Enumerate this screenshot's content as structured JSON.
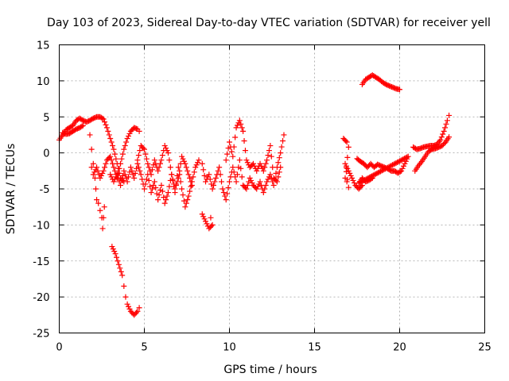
{
  "chart_data": {
    "type": "scatter",
    "title": "Day 103 of 2023, Sidereal Day-to-day VTEC variation (SDTVAR) for receiver yell",
    "xlabel": "GPS time / hours",
    "ylabel": "SDTVAR / TECUs",
    "xlim": [
      0,
      25
    ],
    "ylim": [
      -25,
      15
    ],
    "xticks": [
      "0",
      "5",
      "10",
      "15",
      "20",
      "25"
    ],
    "yticks": [
      "-25",
      "-20",
      "-15",
      "-10",
      "-5",
      "0",
      "5",
      "10",
      "15"
    ],
    "grid": true,
    "marker": "+",
    "color": "#ff0000",
    "series": [
      {
        "name": "s1",
        "points": [
          [
            0.0,
            1.8
          ],
          [
            0.2,
            2.5
          ],
          [
            0.4,
            3.2
          ],
          [
            0.6,
            3.5
          ],
          [
            0.8,
            3.8
          ],
          [
            1.0,
            4.5
          ],
          [
            1.2,
            4.8
          ],
          [
            1.4,
            4.5
          ],
          [
            1.6,
            4.3
          ],
          [
            1.8,
            4.5
          ],
          [
            2.0,
            4.8
          ],
          [
            2.2,
            5.0
          ],
          [
            2.4,
            5.0
          ],
          [
            2.6,
            4.7
          ],
          [
            2.8,
            3.5
          ],
          [
            3.0,
            2.0
          ],
          [
            3.2,
            0.5
          ],
          [
            3.4,
            -1.5
          ],
          [
            3.6,
            -3.5
          ],
          [
            3.8,
            -4.0
          ]
        ]
      },
      {
        "name": "s2",
        "points": [
          [
            0.2,
            2.8
          ],
          [
            0.4,
            2.6
          ],
          [
            0.6,
            2.7
          ],
          [
            0.8,
            3.0
          ],
          [
            1.0,
            3.3
          ],
          [
            1.2,
            3.5
          ],
          [
            1.4,
            3.8
          ]
        ]
      },
      {
        "name": "s3",
        "points": [
          [
            1.8,
            2.5
          ],
          [
            1.9,
            0.5
          ],
          [
            2.0,
            -1.5
          ],
          [
            2.1,
            -3.5
          ],
          [
            2.15,
            -5.0
          ],
          [
            2.2,
            -6.5
          ]
        ]
      },
      {
        "name": "s4",
        "points": [
          [
            2.3,
            -7.0
          ],
          [
            2.4,
            -8.0
          ],
          [
            2.5,
            -9.0
          ],
          [
            2.55,
            -10.5
          ],
          [
            2.6,
            -9.0
          ],
          [
            2.65,
            -7.5
          ]
        ]
      },
      {
        "name": "s5",
        "points": [
          [
            1.9,
            -2.0
          ],
          [
            2.0,
            -3.0
          ],
          [
            2.2,
            -2.0
          ],
          [
            2.4,
            -3.5
          ],
          [
            2.6,
            -2.5
          ],
          [
            2.8,
            -1.0
          ],
          [
            3.0,
            -0.5
          ],
          [
            3.2,
            -2.0
          ],
          [
            3.4,
            -3.5
          ],
          [
            3.6,
            -1.5
          ],
          [
            3.8,
            0.5
          ],
          [
            4.0,
            2.0
          ],
          [
            4.2,
            3.0
          ],
          [
            4.4,
            3.5
          ],
          [
            4.6,
            3.3
          ],
          [
            4.7,
            3.0
          ]
        ]
      },
      {
        "name": "s6",
        "points": [
          [
            3.1,
            -13.0
          ],
          [
            3.3,
            -14.0
          ],
          [
            3.5,
            -15.5
          ],
          [
            3.7,
            -17.0
          ],
          [
            3.8,
            -18.5
          ],
          [
            3.9,
            -20.0
          ],
          [
            4.0,
            -21.0
          ],
          [
            4.2,
            -22.0
          ],
          [
            4.4,
            -22.5
          ],
          [
            4.6,
            -22.0
          ],
          [
            4.7,
            -21.5
          ]
        ]
      },
      {
        "name": "s7",
        "points": [
          [
            3.0,
            -3.0
          ],
          [
            3.2,
            -4.0
          ],
          [
            3.4,
            -3.0
          ],
          [
            3.6,
            -4.5
          ],
          [
            3.8,
            -2.5
          ],
          [
            4.0,
            -4.0
          ],
          [
            4.2,
            -2.0
          ],
          [
            4.4,
            -3.5
          ],
          [
            4.6,
            -1.5
          ],
          [
            4.8,
            -3.0
          ],
          [
            5.0,
            -5.0
          ],
          [
            5.2,
            -3.0
          ],
          [
            5.4,
            -5.5
          ],
          [
            5.6,
            -4.0
          ],
          [
            5.8,
            -6.5
          ],
          [
            6.0,
            -4.5
          ],
          [
            6.2,
            -7.0
          ],
          [
            6.4,
            -5.5
          ],
          [
            6.6,
            -3.0
          ],
          [
            6.8,
            -5.5
          ],
          [
            7.0,
            -2.0
          ],
          [
            7.2,
            -5.0
          ],
          [
            7.4,
            -7.5
          ],
          [
            7.6,
            -6.0
          ],
          [
            7.8,
            -4.0
          ],
          [
            8.0,
            -2.0
          ],
          [
            8.2,
            -1.0
          ]
        ]
      },
      {
        "name": "s8",
        "points": [
          [
            4.6,
            -1.0
          ],
          [
            4.8,
            1.0
          ],
          [
            5.0,
            0.5
          ],
          [
            5.2,
            -1.5
          ],
          [
            5.4,
            -3.0
          ],
          [
            5.6,
            -1.0
          ],
          [
            5.8,
            -2.5
          ],
          [
            6.0,
            -1.0
          ],
          [
            6.2,
            1.0
          ],
          [
            6.4,
            0.0
          ],
          [
            6.6,
            -3.0
          ],
          [
            6.8,
            -5.0
          ],
          [
            7.0,
            -3.5
          ],
          [
            7.2,
            -0.5
          ],
          [
            7.4,
            -1.5
          ],
          [
            7.6,
            -3.0
          ],
          [
            7.8,
            -4.5
          ]
        ]
      },
      {
        "name": "s9",
        "points": [
          [
            8.4,
            -1.5
          ],
          [
            8.6,
            -4.0
          ],
          [
            8.8,
            -3.0
          ],
          [
            9.0,
            -5.0
          ],
          [
            9.2,
            -3.5
          ],
          [
            9.4,
            -2.0
          ],
          [
            9.6,
            -5.0
          ],
          [
            9.8,
            -6.5
          ],
          [
            10.0,
            -4.0
          ],
          [
            10.2,
            -2.0
          ],
          [
            10.4,
            -4.0
          ],
          [
            10.6,
            -1.0
          ],
          [
            10.8,
            -4.5
          ],
          [
            11.0,
            -5.0
          ],
          [
            11.2,
            -3.5
          ],
          [
            11.4,
            -4.5
          ],
          [
            11.6,
            -5.0
          ],
          [
            11.8,
            -4.0
          ],
          [
            12.0,
            -5.5
          ],
          [
            12.2,
            -4.0
          ],
          [
            12.4,
            -3.0
          ],
          [
            12.6,
            -4.5
          ],
          [
            12.8,
            -2.0
          ],
          [
            13.0,
            0.0
          ],
          [
            13.2,
            2.5
          ]
        ]
      },
      {
        "name": "s10",
        "points": [
          [
            8.4,
            -8.5
          ],
          [
            8.6,
            -9.5
          ],
          [
            8.8,
            -10.5
          ],
          [
            9.0,
            -10.0
          ],
          [
            8.9,
            -9.0
          ]
        ]
      },
      {
        "name": "s11",
        "points": [
          [
            9.8,
            -1.0
          ],
          [
            10.0,
            1.5
          ],
          [
            10.2,
            -0.5
          ],
          [
            10.4,
            3.5
          ],
          [
            10.6,
            4.5
          ],
          [
            10.8,
            3.0
          ],
          [
            11.0,
            -1.0
          ],
          [
            11.2,
            -2.0
          ],
          [
            11.4,
            -1.5
          ],
          [
            11.6,
            -2.5
          ],
          [
            11.8,
            -1.5
          ],
          [
            12.0,
            -2.5
          ],
          [
            12.2,
            -1.0
          ],
          [
            12.4,
            1.0
          ],
          [
            12.6,
            -3.5
          ],
          [
            12.8,
            -4.0
          ],
          [
            13.0,
            -2.0
          ]
        ]
      },
      {
        "name": "s12",
        "points": [
          [
            16.7,
            2.0
          ],
          [
            16.9,
            1.5
          ],
          [
            17.0,
            0.8
          ],
          [
            16.8,
            -3.5
          ],
          [
            16.9,
            -4.0
          ],
          [
            17.0,
            -4.8
          ],
          [
            16.8,
            -1.5
          ],
          [
            17.0,
            -2.5
          ],
          [
            17.2,
            -3.5
          ],
          [
            17.4,
            -4.5
          ],
          [
            17.6,
            -5.0
          ],
          [
            17.8,
            -4.5
          ]
        ]
      },
      {
        "name": "s13",
        "points": [
          [
            17.5,
            -0.8
          ],
          [
            17.7,
            -1.2
          ],
          [
            17.9,
            -1.5
          ],
          [
            18.1,
            -2.0
          ],
          [
            18.3,
            -1.5
          ],
          [
            18.5,
            -2.0
          ],
          [
            18.7,
            -1.6
          ],
          [
            18.9,
            -1.8
          ],
          [
            19.1,
            -2.0
          ],
          [
            19.3,
            -2.2
          ],
          [
            19.5,
            -2.5
          ],
          [
            19.7,
            -2.5
          ],
          [
            19.9,
            -2.8
          ],
          [
            20.1,
            -2.5
          ],
          [
            20.3,
            -1.5
          ],
          [
            20.5,
            -0.5
          ],
          [
            17.6,
            -4.2
          ],
          [
            17.8,
            -3.5
          ],
          [
            18.0,
            -4.0
          ],
          [
            18.2,
            -3.8
          ],
          [
            18.4,
            -3.5
          ]
        ]
      },
      {
        "name": "s14",
        "points": [
          [
            17.8,
            9.5
          ],
          [
            18.0,
            10.2
          ],
          [
            18.2,
            10.5
          ],
          [
            18.4,
            10.8
          ],
          [
            18.6,
            10.5
          ],
          [
            18.8,
            10.2
          ],
          [
            19.0,
            9.8
          ],
          [
            19.2,
            9.5
          ],
          [
            19.4,
            9.3
          ],
          [
            19.6,
            9.1
          ],
          [
            19.8,
            8.9
          ],
          [
            20.0,
            8.8
          ]
        ]
      },
      {
        "name": "s15",
        "points": [
          [
            20.8,
            0.8
          ],
          [
            21.0,
            0.5
          ],
          [
            21.2,
            0.6
          ],
          [
            21.4,
            0.8
          ],
          [
            21.6,
            0.9
          ],
          [
            21.8,
            1.0
          ],
          [
            22.0,
            1.0
          ],
          [
            22.2,
            1.2
          ],
          [
            22.4,
            1.8
          ],
          [
            22.6,
            3.0
          ],
          [
            22.8,
            4.5
          ],
          [
            22.9,
            5.2
          ]
        ]
      },
      {
        "name": "s16",
        "points": [
          [
            20.9,
            -2.5
          ],
          [
            21.1,
            -1.8
          ],
          [
            21.3,
            -1.2
          ],
          [
            21.5,
            -0.5
          ],
          [
            21.7,
            0.2
          ],
          [
            21.9,
            0.5
          ],
          [
            22.1,
            0.6
          ],
          [
            22.3,
            0.8
          ],
          [
            22.5,
            1.0
          ],
          [
            22.7,
            1.5
          ],
          [
            22.9,
            2.2
          ]
        ]
      }
    ]
  }
}
